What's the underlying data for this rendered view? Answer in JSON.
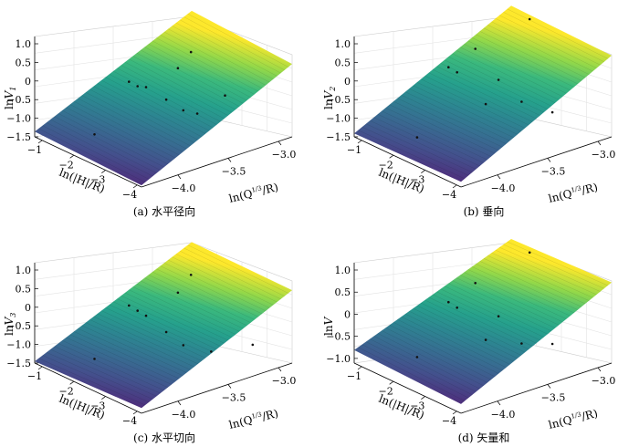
{
  "chart_data": [
    {
      "type": "surface",
      "caption": "(a) 水平径向",
      "zlabel": "lnV",
      "zlabel_sub": "1",
      "xlabel": "ln(|H|/R)",
      "ylabel_pre": "ln(Q",
      "ylabel_sup": "1/3",
      "ylabel_post": "/R)",
      "x_ticks": [
        "−1",
        "−2",
        "−3",
        "−4"
      ],
      "y_ticks": [
        "−4.0",
        "−3.5",
        "−3.0"
      ],
      "z_ticks": [
        "1.0",
        "0.5",
        "0",
        "−0.5",
        "−1.0",
        "−1.5"
      ],
      "xlim": [
        -4.2,
        -0.8
      ],
      "ylim": [
        -4.3,
        -2.9
      ],
      "zlim": [
        -1.7,
        1.2
      ],
      "surface_corners": {
        "near_far": -1.55,
        "left": -1.65,
        "right": 0.55,
        "top": 1.15
      },
      "points": [
        [
          -2.4,
          -3.9,
          0.28
        ],
        [
          -2.5,
          -3.85,
          0.15
        ],
        [
          -2.6,
          -3.8,
          0.12
        ],
        [
          -2.2,
          -3.4,
          0.25
        ],
        [
          -1.9,
          -3.2,
          0.5
        ],
        [
          -2.9,
          -3.7,
          -0.22
        ],
        [
          -3.1,
          -3.6,
          -0.55
        ],
        [
          -3.2,
          -3.5,
          -0.7
        ],
        [
          -3.4,
          -3.3,
          -0.3
        ],
        [
          -2.0,
          -4.1,
          -1.25
        ]
      ]
    },
    {
      "type": "surface",
      "caption": "(b) 垂向",
      "zlabel": "lnV",
      "zlabel_sub": "2",
      "xlabel": "ln(|H|/R)",
      "ylabel_pre": "ln(Q",
      "ylabel_sup": "1/3",
      "ylabel_post": "/R)",
      "x_ticks": [
        "−1",
        "−2",
        "−3",
        "−4"
      ],
      "y_ticks": [
        "−4.0",
        "−3.5",
        "−3.0"
      ],
      "z_ticks": [
        "1.0",
        "0.5",
        "0",
        "−0.5",
        "−1.0",
        "−1.5"
      ],
      "xlim": [
        -4.2,
        -0.8
      ],
      "ylim": [
        -4.3,
        -2.9
      ],
      "zlim": [
        -1.7,
        1.2
      ],
      "surface_corners": {
        "near_far": -1.6,
        "left": -1.55,
        "right": 0.85,
        "top": 1.3
      },
      "points": [
        [
          -2.4,
          -3.9,
          0.7
        ],
        [
          -2.5,
          -3.85,
          0.55
        ],
        [
          -2.2,
          -3.6,
          0.95
        ],
        [
          -2.6,
          -3.5,
          0.1
        ],
        [
          -2.9,
          -3.7,
          -0.35
        ],
        [
          -3.0,
          -3.4,
          -0.5
        ],
        [
          -3.3,
          -3.2,
          -0.9
        ],
        [
          -2.1,
          -4.1,
          -1.3
        ],
        [
          -1.8,
          -3.0,
          1.3
        ]
      ]
    },
    {
      "type": "surface",
      "caption": "(c) 水平切向",
      "zlabel": "lnV",
      "zlabel_sub": "3",
      "xlabel": "ln(|H|/R)",
      "ylabel_pre": "ln(Q",
      "ylabel_sup": "1/3",
      "ylabel_post": "/R)",
      "x_ticks": [
        "−1",
        "−2",
        "−3",
        "−4"
      ],
      "y_ticks": [
        "−4.0",
        "−3.5",
        "−3.0"
      ],
      "z_ticks": [
        "1.0",
        "0.5",
        "0",
        "−0.5",
        "−1.0",
        "−1.5"
      ],
      "xlim": [
        -4.2,
        -0.8
      ],
      "ylim": [
        -4.3,
        -2.9
      ],
      "zlim": [
        -1.7,
        1.2
      ],
      "surface_corners": {
        "near_far": -1.65,
        "left": -1.55,
        "right": 0.55,
        "top": 1.0
      },
      "points": [
        [
          -2.4,
          -3.9,
          0.35
        ],
        [
          -2.5,
          -3.85,
          0.2
        ],
        [
          -2.6,
          -3.8,
          0.05
        ],
        [
          -2.2,
          -3.4,
          0.3
        ],
        [
          -1.9,
          -3.2,
          0.6
        ],
        [
          -2.9,
          -3.7,
          -0.4
        ],
        [
          -3.1,
          -3.6,
          -0.8
        ],
        [
          -3.3,
          -3.4,
          -1.1
        ],
        [
          -3.6,
          -3.1,
          -1.1
        ],
        [
          -2.0,
          -4.1,
          -1.2
        ]
      ]
    },
    {
      "type": "surface",
      "caption": "(d) 矢量和",
      "zlabel": "lnV",
      "zlabel_sub": "",
      "xlabel": "ln(|H|/R)",
      "ylabel_pre": "ln(Q",
      "ylabel_sup": "1/3",
      "ylabel_post": "/R)",
      "x_ticks": [
        "−1",
        "−2",
        "−3",
        "−4"
      ],
      "y_ticks": [
        "−4.0",
        "−3.5",
        "−3.0"
      ],
      "z_ticks": [
        "1.0",
        "0.5",
        "0",
        "−0.5",
        "−1.0"
      ],
      "xlim": [
        -4.2,
        -0.8
      ],
      "ylim": [
        -4.3,
        -2.9
      ],
      "zlim": [
        -1.15,
        1.55
      ],
      "surface_corners": {
        "near_far": -0.8,
        "left": -0.9,
        "right": 1.2,
        "top": 1.45
      },
      "points": [
        [
          -2.4,
          -3.9,
          0.85
        ],
        [
          -2.5,
          -3.85,
          0.7
        ],
        [
          -2.2,
          -3.6,
          1.1
        ],
        [
          -2.6,
          -3.5,
          0.25
        ],
        [
          -2.9,
          -3.7,
          -0.15
        ],
        [
          -3.0,
          -3.4,
          -0.45
        ],
        [
          -3.3,
          -3.2,
          -0.55
        ],
        [
          -2.1,
          -4.1,
          -0.6
        ],
        [
          -1.8,
          -3.0,
          1.45
        ]
      ]
    }
  ]
}
